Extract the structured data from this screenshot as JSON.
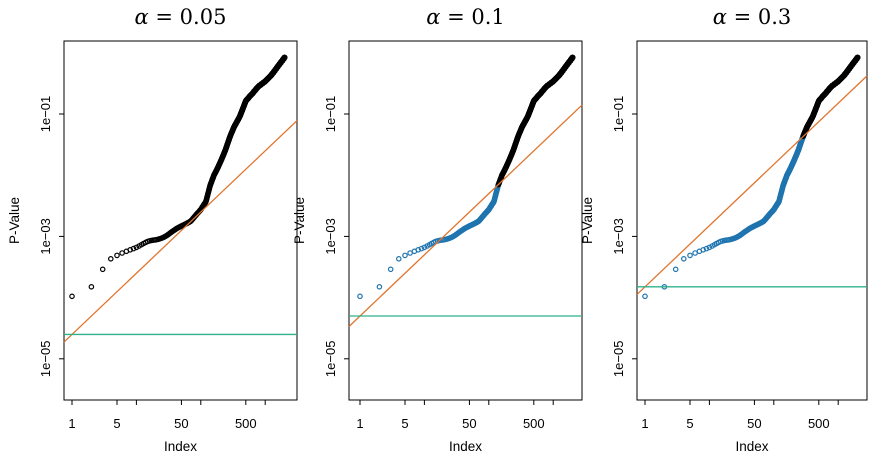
{
  "figure_background": "#ffffff",
  "chart_data": {
    "type": "scatter",
    "description": "Sorted p-values (log-log) with Benjamini-Hochberg line and Bonferroni threshold for three alpha levels",
    "xlabel": "Index",
    "ylabel": "P-Value",
    "x_scale": "log",
    "y_scale": "log",
    "m_tests": 2000,
    "x_ticks": [
      1,
      5,
      10,
      50,
      100,
      500,
      1000
    ],
    "x_tick_labels": [
      "1",
      "5",
      "",
      "50",
      "",
      "500",
      ""
    ],
    "y_ticks": [
      0.1,
      0.001,
      1e-05
    ],
    "y_tick_labels": [
      "1e−01",
      "1e−03",
      "1e−05"
    ],
    "curve_control_points": [
      [
        1,
        0.000105
      ],
      [
        2,
        0.00015
      ],
      [
        3,
        0.00029
      ],
      [
        4,
        0.00043
      ],
      [
        5,
        0.00049
      ],
      [
        7,
        0.00055
      ],
      [
        10,
        0.00065
      ],
      [
        15,
        0.0008
      ],
      [
        20,
        0.0009
      ],
      [
        30,
        0.0011
      ],
      [
        50,
        0.00145
      ],
      [
        70,
        0.00175
      ],
      [
        100,
        0.0026
      ],
      [
        120,
        0.0036
      ],
      [
        140,
        0.007
      ],
      [
        160,
        0.0105
      ],
      [
        180,
        0.0135
      ],
      [
        210,
        0.019
      ],
      [
        240,
        0.026
      ],
      [
        285,
        0.043
      ],
      [
        330,
        0.062
      ],
      [
        400,
        0.09
      ],
      [
        500,
        0.16
      ],
      [
        650,
        0.21
      ],
      [
        800,
        0.275
      ],
      [
        1000,
        0.35
      ],
      [
        1300,
        0.48
      ],
      [
        1600,
        0.63
      ],
      [
        1850,
        0.76
      ],
      [
        2000,
        0.85
      ]
    ],
    "panels": [
      {
        "title": "α = 0.05",
        "alpha": 0.05,
        "bh_significant_count": 0,
        "bonferroni_threshold": 2.5e-05
      },
      {
        "title": "α = 0.1",
        "alpha": 0.1,
        "bh_significant_count": 140,
        "bonferroni_threshold": 5e-05
      },
      {
        "title": "α = 0.3",
        "alpha": 0.3,
        "bh_significant_count": 285,
        "bonferroni_threshold": 0.00015
      }
    ],
    "colors": {
      "point": "#000000",
      "significant_point": "#1F74AF",
      "bh_line": "#E0752F",
      "bonferroni_line": "#2FB18C",
      "box": "#000000"
    },
    "legend": null,
    "grid": false
  }
}
